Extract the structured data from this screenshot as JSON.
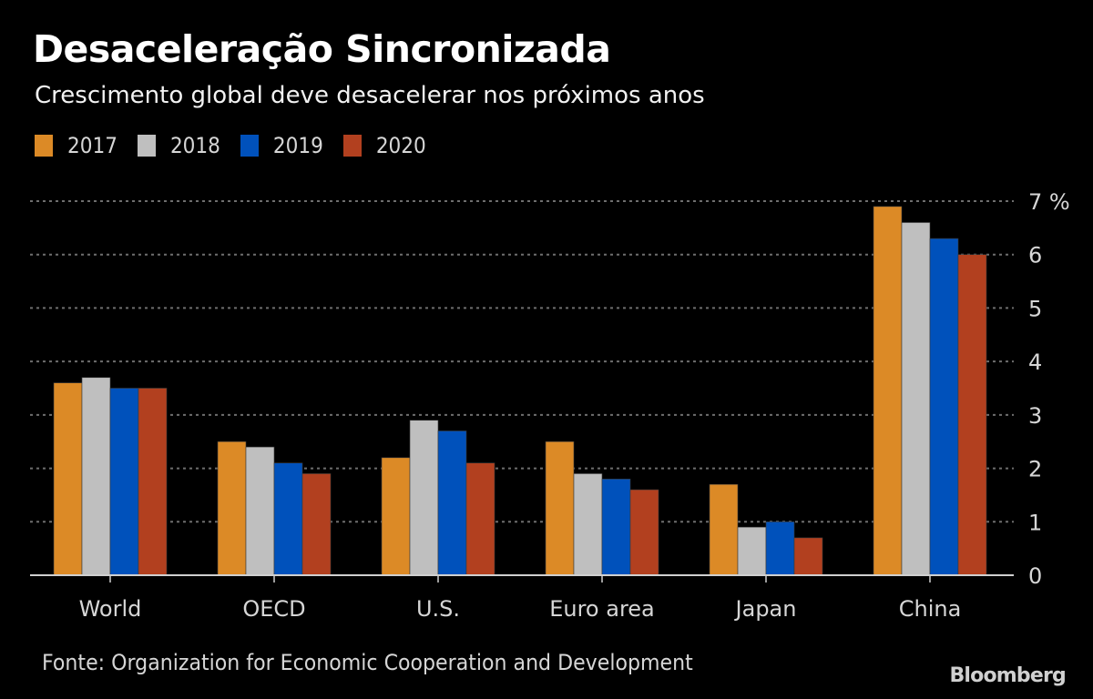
{
  "chart_data": {
    "type": "bar",
    "title": "Desaceleração Sincronizada",
    "subtitle": "Crescimento global deve desacelerar nos próximos anos",
    "xlabel": "",
    "ylabel": "%",
    "ylim": [
      0,
      7
    ],
    "yticks": [
      0,
      1,
      2,
      3,
      4,
      5,
      6,
      7
    ],
    "ytick_labels": [
      "0",
      "1",
      "2",
      "3",
      "4",
      "5",
      "6",
      "7 %"
    ],
    "grid": true,
    "y_axis_position": "right",
    "legend_position": "top-left",
    "categories": [
      "World",
      "OECD",
      "U.S.",
      "Euro area",
      "Japan",
      "China"
    ],
    "series": [
      {
        "name": "2017",
        "color": "#dc8a26",
        "values": [
          3.6,
          2.5,
          2.2,
          2.5,
          1.7,
          6.9
        ]
      },
      {
        "name": "2018",
        "color": "#bfbfbf",
        "values": [
          3.7,
          2.4,
          2.9,
          1.9,
          0.9,
          6.6
        ]
      },
      {
        "name": "2019",
        "color": "#0051bb",
        "values": [
          3.5,
          2.1,
          2.7,
          1.8,
          1.0,
          6.3
        ]
      },
      {
        "name": "2020",
        "color": "#b2401f",
        "values": [
          3.5,
          1.9,
          2.1,
          1.6,
          0.7,
          6.0
        ]
      }
    ],
    "source": "Fonte: Organization for Economic Cooperation and Development",
    "brand": "Bloomberg"
  }
}
